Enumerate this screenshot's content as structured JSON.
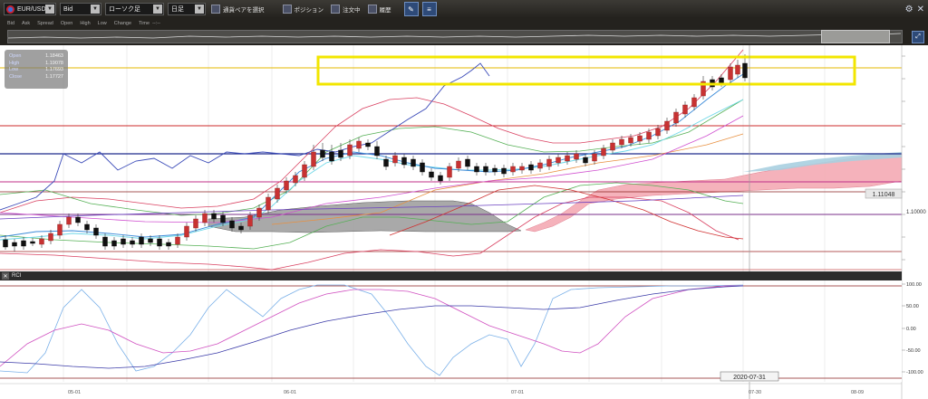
{
  "toolbar": {
    "symbol": "EUR/USD",
    "price_side": "Bid",
    "chart_type": "ローソク足",
    "timeframe": "日足",
    "select_pair_label": "通貨ペアを選択",
    "positions_label": "ポジション",
    "orders_label": "注文中",
    "history_label": "履歴"
  },
  "legend": {
    "items": [
      "Bid",
      "Ask",
      "Spread",
      "Open",
      "High",
      "Low",
      "Change",
      "Time"
    ],
    "time_value": "--:--"
  },
  "ohlc": {
    "open_label": "Open",
    "open_value": "1.18463",
    "high_label": "High",
    "high_value": "1.19078",
    "low_label": "Low",
    "low_value": "1.17693",
    "close_label": "Close",
    "close_value": "1.17727"
  },
  "main_chart": {
    "price_marker": "1.11048",
    "axis_label": "1.10000",
    "highlight_color": "#f2e600"
  },
  "rci": {
    "title": "RCI",
    "y_labels": [
      "100.00",
      "50.00",
      "0.00",
      "-50.00",
      "-100.00"
    ]
  },
  "x_axis": {
    "labels": [
      "05-01",
      "06-01",
      "07-01",
      "07-30",
      "08-09"
    ],
    "crosshair_date": "2020-07-31"
  }
}
